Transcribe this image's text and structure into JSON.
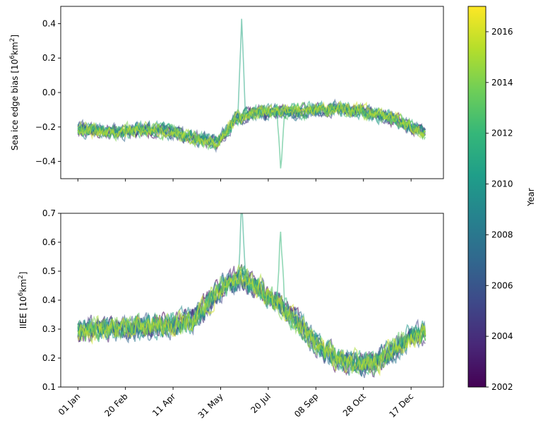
{
  "chart_data": [
    {
      "type": "line",
      "panel": "top",
      "ylabel": "Sea ice edge bias [10⁶km²]",
      "ylabel_parts": {
        "base": "Sea ice edge bias [10",
        "sup": "6",
        "unit": "km",
        "sup2": "2",
        "end": "]"
      },
      "ylim": [
        -0.5,
        0.5
      ],
      "yticks": [
        -0.4,
        -0.2,
        0.0,
        0.2,
        0.4
      ],
      "ytick_labels": [
        "−0.4",
        "−0.2",
        "0.0",
        "0.2",
        "0.4"
      ],
      "x_days": [
        0,
        20,
        40,
        60,
        80,
        100,
        120,
        135,
        145,
        155,
        165,
        175,
        190,
        210,
        230,
        250,
        270,
        290,
        310,
        330,
        350,
        365
      ],
      "mean": [
        -0.22,
        -0.23,
        -0.24,
        -0.23,
        -0.22,
        -0.24,
        -0.27,
        -0.29,
        -0.3,
        -0.24,
        -0.17,
        -0.14,
        -0.12,
        -0.12,
        -0.12,
        -0.11,
        -0.1,
        -0.11,
        -0.13,
        -0.16,
        -0.21,
        -0.24
      ],
      "spikes": [
        {
          "year": 2011,
          "day": 172,
          "value": 0.43
        },
        {
          "year": 2012,
          "day": 213,
          "value": -0.48
        }
      ]
    },
    {
      "type": "line",
      "panel": "bottom",
      "ylabel": "IIEE [10⁶km²]",
      "ylabel_parts": {
        "base": "IIEE [10",
        "sup": "6",
        "unit": "km",
        "sup2": "2",
        "end": "]"
      },
      "ylim": [
        0.1,
        0.7
      ],
      "yticks": [
        0.1,
        0.2,
        0.3,
        0.4,
        0.5,
        0.6,
        0.7
      ],
      "ytick_labels": [
        "0.1",
        "0.2",
        "0.3",
        "0.4",
        "0.5",
        "0.6",
        "0.7"
      ],
      "x_days": [
        0,
        20,
        40,
        60,
        80,
        100,
        120,
        135,
        145,
        155,
        165,
        175,
        190,
        210,
        230,
        250,
        270,
        290,
        310,
        330,
        350,
        365
      ],
      "mean": [
        0.28,
        0.29,
        0.29,
        0.29,
        0.3,
        0.3,
        0.32,
        0.37,
        0.41,
        0.44,
        0.46,
        0.46,
        0.43,
        0.38,
        0.31,
        0.24,
        0.19,
        0.17,
        0.17,
        0.21,
        0.26,
        0.28
      ],
      "spikes": [
        {
          "year": 2011,
          "day": 172,
          "value": 0.72
        },
        {
          "year": 2012,
          "day": 213,
          "value": 0.62
        }
      ]
    }
  ],
  "xaxis": {
    "xlim_days": [
      -18,
      384
    ],
    "tick_days": [
      0,
      50,
      100,
      150,
      200,
      250,
      300,
      350
    ],
    "tick_labels": [
      "01 Jan",
      "20 Feb",
      "11 Apr",
      "31 May",
      "20 Jul",
      "08 Sep",
      "28 Oct",
      "17 Dec"
    ]
  },
  "years": [
    2002,
    2003,
    2004,
    2005,
    2006,
    2007,
    2008,
    2009,
    2010,
    2011,
    2012,
    2013,
    2014,
    2015,
    2016
  ],
  "colorbar": {
    "label": "Year",
    "range": [
      2002,
      2017
    ],
    "ticks": [
      2002,
      2004,
      2006,
      2008,
      2010,
      2012,
      2014,
      2016
    ],
    "tick_labels": [
      "2002",
      "2004",
      "2006",
      "2008",
      "2010",
      "2012",
      "2014",
      "2016"
    ],
    "colormap_stops": [
      "#440154",
      "#482878",
      "#3e4989",
      "#31688e",
      "#26828e",
      "#1f9e89",
      "#35b779",
      "#6ece58",
      "#b5de2b",
      "#fde725"
    ]
  },
  "line_alpha": 0.55
}
